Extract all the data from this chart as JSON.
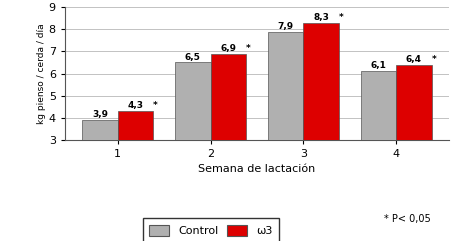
{
  "categories": [
    "1",
    "2",
    "3",
    "4"
  ],
  "control_values": [
    3.9,
    6.5,
    7.9,
    6.1
  ],
  "omega3_values": [
    4.3,
    6.9,
    8.3,
    6.4
  ],
  "control_labels": [
    "3,9",
    "6,5",
    "7,9",
    "6,1"
  ],
  "omega3_labels": [
    "4,3",
    "6,9",
    "8,3",
    "6,4"
  ],
  "control_color": "#b0b0b0",
  "omega3_color": "#dd0000",
  "ylabel": "kg pienso / cerda / día",
  "xlabel": "Semana de lactación",
  "ylim": [
    3,
    9
  ],
  "yticks": [
    3,
    4,
    5,
    6,
    7,
    8,
    9
  ],
  "bar_width": 0.38,
  "significance_note": "* P< 0,05",
  "legend_control": "Control",
  "legend_omega3": "ω3",
  "background_color": "#ffffff"
}
